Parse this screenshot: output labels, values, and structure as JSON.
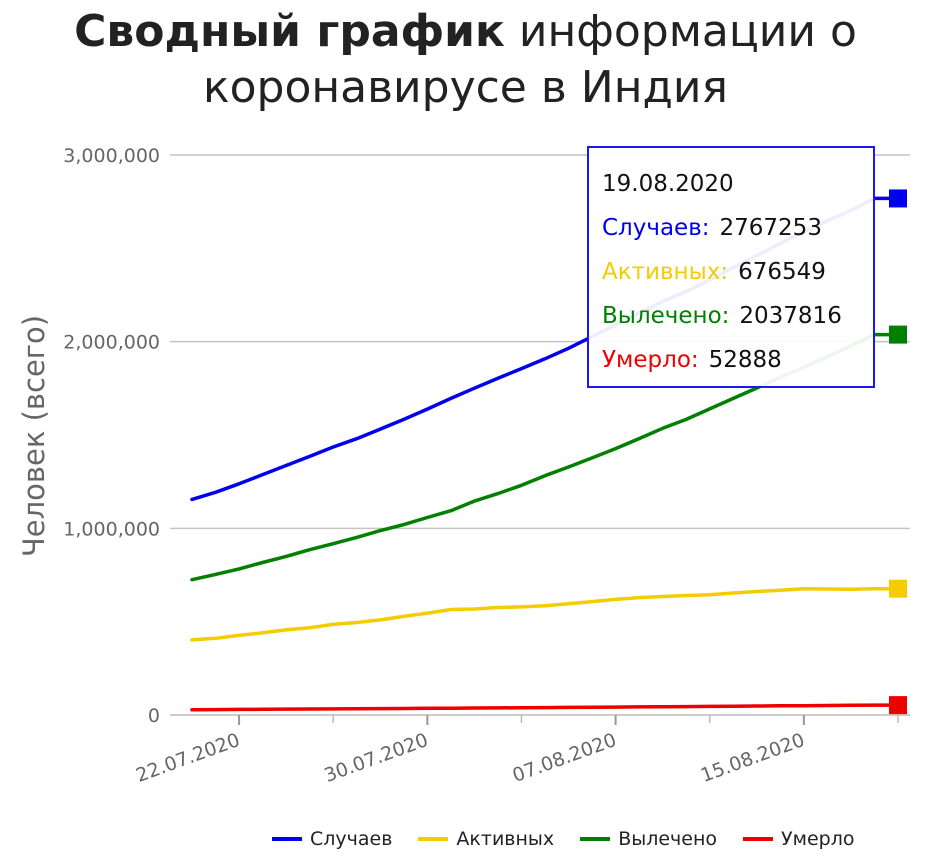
{
  "title": {
    "bold": "Сводный график",
    "rest": "информации о коронавирусе в Индия"
  },
  "tooltip": {
    "date": "19.08.2020",
    "rows": [
      {
        "label": "Случаев:",
        "value": "2767253"
      },
      {
        "label": "Активных:",
        "value": "676549"
      },
      {
        "label": "Вылечено:",
        "value": "2037816"
      },
      {
        "label": "Умерло:",
        "value": "52888"
      }
    ]
  },
  "chart_data": {
    "type": "line",
    "ylabel": "Человек (всего)",
    "xlabel": "",
    "ylim": [
      0,
      3000000
    ],
    "yticks": [
      0,
      1000000,
      2000000,
      3000000
    ],
    "ytick_labels": [
      "0",
      "1,000,000",
      "2,000,000",
      "3,000,000"
    ],
    "x": [
      "20.07.2020",
      "21.07.2020",
      "22.07.2020",
      "23.07.2020",
      "24.07.2020",
      "25.07.2020",
      "26.07.2020",
      "27.07.2020",
      "28.07.2020",
      "29.07.2020",
      "30.07.2020",
      "31.07.2020",
      "01.08.2020",
      "02.08.2020",
      "03.08.2020",
      "04.08.2020",
      "05.08.2020",
      "06.08.2020",
      "07.08.2020",
      "08.08.2020",
      "09.08.2020",
      "10.08.2020",
      "11.08.2020",
      "12.08.2020",
      "13.08.2020",
      "14.08.2020",
      "15.08.2020",
      "16.08.2020",
      "17.08.2020",
      "18.08.2020",
      "19.08.2020"
    ],
    "xtick_labels": [
      "22.07.2020",
      "30.07.2020",
      "07.08.2020",
      "15.08.2020"
    ],
    "xtick_positions": [
      2,
      10,
      18,
      26
    ],
    "grid": true,
    "legend": "bottom",
    "series": [
      {
        "name": "Случаев",
        "color": "#0000ee",
        "values": [
          1155191,
          1193078,
          1238635,
          1287945,
          1336861,
          1385522,
          1435453,
          1480073,
          1531669,
          1583792,
          1638870,
          1695988,
          1750723,
          1803695,
          1855745,
          1908254,
          1964536,
          2027074,
          2088611,
          2153010,
          2215074,
          2268675,
          2329638,
          2396637,
          2461190,
          2526192,
          2589682,
          2647663,
          2702742,
          2767253,
          2767253
        ]
      },
      {
        "name": "Активных",
        "color": "#f5cc00",
        "values": [
          402529,
          411133,
          426167,
          440135,
          456071,
          467882,
          485114,
          495499,
          509447,
          528242,
          545318,
          565103,
          567730,
          576010,
          579357,
          585474,
          595501,
          607384,
          619088,
          628747,
          634945,
          639929,
          643948,
          653622,
          661595,
          668220,
          676514,
          674990,
          673166,
          676549,
          676549
        ]
      },
      {
        "name": "Вылечено",
        "color": "#008000",
        "values": [
          724578,
          753049,
          782606,
          817209,
          849432,
          885573,
          917568,
          951166,
          988029,
          1019735,
          1057805,
          1094374,
          1145629,
          1186203,
          1230509,
          1282215,
          1328336,
          1377384,
          1427005,
          1480884,
          1535743,
          1583489,
          1639599,
          1695982,
          1751555,
          1808936,
          1862258,
          1919842,
          1977779,
          2037816,
          2037816
        ]
      },
      {
        "name": "Умерло",
        "color": "#ee0000",
        "values": [
          28084,
          28896,
          29861,
          30601,
          31358,
          32063,
          32771,
          33408,
          34193,
          34955,
          35747,
          36511,
          37364,
          38135,
          38938,
          39795,
          40699,
          41585,
          42518,
          43379,
          44386,
          45257,
          46091,
          47033,
          48040,
          49036,
          49980,
          50921,
          51797,
          52888,
          52888
        ]
      }
    ]
  }
}
